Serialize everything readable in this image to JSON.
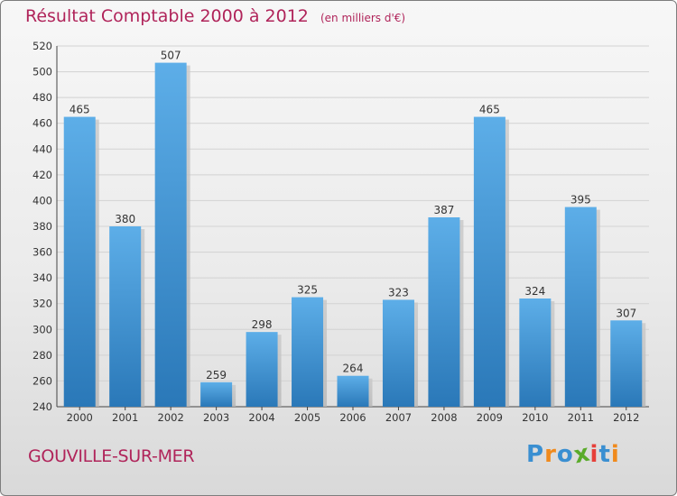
{
  "chart_data": {
    "type": "bar",
    "title": "Résultat Comptable 2000 à 2012",
    "subtitle": "(en milliers d'€)",
    "categories": [
      "2000",
      "2001",
      "2002",
      "2003",
      "2004",
      "2005",
      "2006",
      "2007",
      "2008",
      "2009",
      "2010",
      "2011",
      "2012"
    ],
    "values": [
      465,
      380,
      507,
      259,
      298,
      325,
      264,
      323,
      387,
      465,
      324,
      395,
      307
    ],
    "ylim": [
      240,
      520
    ],
    "yticks": [
      240,
      260,
      280,
      300,
      320,
      340,
      360,
      380,
      400,
      420,
      440,
      460,
      480,
      500,
      520
    ],
    "xlabel": "",
    "ylabel": "",
    "grid": true
  },
  "footer": {
    "place": "GOUVILLE-SUR-MER",
    "logo": "Proxiti"
  },
  "colors": {
    "title": "#b0245a",
    "bar_top": "#5daee8",
    "bar_bottom": "#2a78b8",
    "logo": [
      "#3a8fd1",
      "#f08a1c",
      "#3a8fd1",
      "#5aab2a",
      "#e6403a",
      "#3a8fd1",
      "#f08a1c"
    ]
  }
}
